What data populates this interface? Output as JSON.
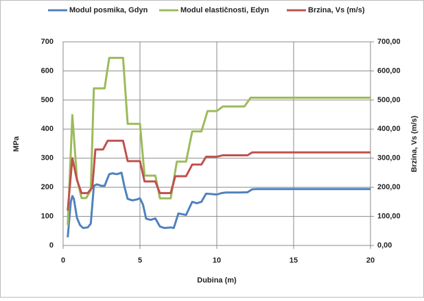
{
  "chart_data": {
    "type": "line",
    "xlabel": "Dubina (m)",
    "ylabel": "MPa",
    "y2label": "Brzina, Vs (m/s)",
    "xlim": [
      0,
      20
    ],
    "xticks": [
      0,
      5,
      10,
      15,
      20
    ],
    "ylim": [
      0,
      700
    ],
    "yticks": [
      0,
      100,
      200,
      300,
      400,
      500,
      600,
      700
    ],
    "y2lim": [
      0,
      700
    ],
    "y2ticks": [
      {
        "value": 0,
        "label": "0,00"
      },
      {
        "value": 100,
        "label": "100,00"
      },
      {
        "value": 200,
        "label": "200,00"
      },
      {
        "value": 300,
        "label": "300,00"
      },
      {
        "value": 400,
        "label": "400,00"
      },
      {
        "value": 500,
        "label": "500,00"
      },
      {
        "value": 600,
        "label": "600,00"
      },
      {
        "value": 700,
        "label": "700,00"
      }
    ],
    "grid": true,
    "legend": "top",
    "series": [
      {
        "name": "Modul posmika, Gdyn",
        "color": "#4f81bd",
        "x": [
          0.3,
          0.5,
          0.6,
          0.7,
          0.9,
          1.1,
          1.3,
          1.6,
          1.8,
          2.0,
          2.2,
          2.5,
          2.7,
          3.0,
          3.2,
          3.5,
          3.8,
          4.0,
          4.2,
          4.5,
          4.8,
          5.0,
          5.2,
          5.4,
          5.7,
          6.0,
          6.3,
          6.6,
          7.0,
          7.2,
          7.5,
          8.0,
          8.4,
          8.7,
          9.0,
          9.3,
          9.6,
          10.0,
          10.3,
          10.6,
          11.0,
          11.5,
          12.0,
          12.3,
          12.6,
          20
        ],
        "values": [
          28,
          150,
          170,
          160,
          95,
          70,
          60,
          62,
          75,
          205,
          210,
          205,
          205,
          245,
          248,
          245,
          250,
          200,
          160,
          155,
          158,
          162,
          140,
          92,
          88,
          93,
          65,
          60,
          62,
          60,
          110,
          105,
          150,
          145,
          150,
          178,
          177,
          175,
          180,
          182,
          182,
          182,
          183,
          193,
          194,
          194
        ]
      },
      {
        "name": "Modul elastičnosti, Edyn",
        "color": "#9bbb59",
        "x": [
          0.3,
          0.6,
          0.9,
          1.2,
          1.5,
          1.8,
          2.0,
          2.7,
          3.0,
          3.9,
          4.2,
          5.0,
          5.3,
          6.0,
          6.3,
          7.0,
          7.4,
          8.0,
          8.4,
          9.0,
          9.4,
          10.0,
          10.4,
          11.8,
          12.2,
          20
        ],
        "values": [
          70,
          448,
          230,
          163,
          163,
          190,
          540,
          540,
          645,
          645,
          418,
          418,
          240,
          240,
          162,
          162,
          288,
          288,
          392,
          392,
          462,
          462,
          478,
          478,
          508,
          508
        ]
      },
      {
        "name": "Brzina, Vs (m/s)",
        "color": "#c0504d",
        "axis": "y2",
        "x": [
          0.3,
          0.6,
          0.9,
          1.2,
          1.6,
          1.9,
          2.1,
          2.6,
          2.9,
          3.9,
          4.2,
          5.0,
          5.3,
          6.0,
          6.3,
          7.0,
          7.3,
          8.0,
          8.4,
          9.0,
          9.3,
          10.0,
          10.4,
          12.0,
          12.3,
          20
        ],
        "values": [
          120,
          300,
          225,
          180,
          180,
          200,
          330,
          330,
          360,
          360,
          290,
          290,
          220,
          220,
          180,
          180,
          238,
          238,
          278,
          278,
          305,
          305,
          310,
          310,
          320,
          320
        ]
      }
    ]
  }
}
